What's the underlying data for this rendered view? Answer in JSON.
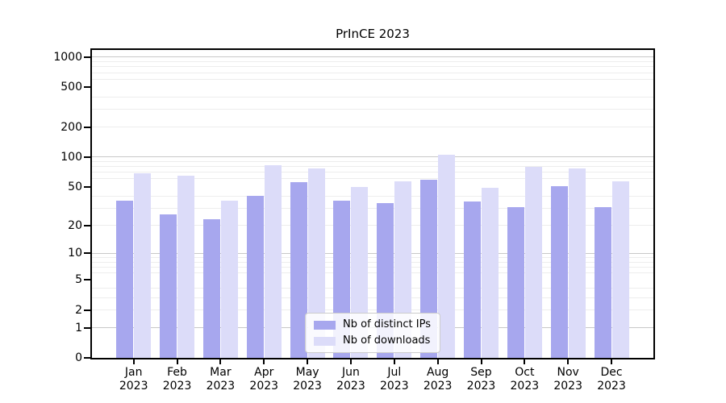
{
  "figure": {
    "title": "PrInCE 2023"
  },
  "chart_data": {
    "type": "bar",
    "title": "PrInCE 2023",
    "xlabel": "",
    "ylabel": "",
    "categories": [
      "Jan 2023",
      "Feb 2023",
      "Mar 2023",
      "Apr 2023",
      "May 2023",
      "Jun 2023",
      "Jul 2023",
      "Aug 2023",
      "Sep 2023",
      "Oct 2023",
      "Nov 2023",
      "Dec 2023"
    ],
    "x_month_labels": [
      "Jan",
      "Feb",
      "Mar",
      "Apr",
      "May",
      "Jun",
      "Jul",
      "Aug",
      "Sep",
      "Oct",
      "Nov",
      "Dec"
    ],
    "x_year_label": "2023",
    "series": [
      {
        "name": "Nb of distinct IPs",
        "color": "#a7a7ee",
        "values": [
          36,
          26,
          23,
          40,
          56,
          36,
          34,
          59,
          35,
          31,
          51,
          31
        ]
      },
      {
        "name": "Nb of downloads",
        "color": "#dcdcf9",
        "values": [
          68,
          65,
          36,
          82,
          76,
          50,
          57,
          105,
          49,
          79,
          77,
          57
        ]
      }
    ],
    "yaxis": {
      "scale": "log1p",
      "ylim": [
        0,
        1221
      ],
      "tick_values": [
        0,
        1,
        2,
        5,
        10,
        20,
        50,
        100,
        200,
        500,
        1000
      ],
      "major_grid_values": [
        1,
        10,
        100,
        1000
      ],
      "minor_grid_values": [
        2,
        3,
        4,
        6,
        7,
        8,
        9,
        20,
        30,
        40,
        60,
        70,
        80,
        90,
        200,
        300,
        400,
        600,
        700,
        800,
        900
      ]
    },
    "legend": {
      "position": "lower center",
      "entries": [
        "Nb of distinct IPs",
        "Nb of downloads"
      ]
    },
    "grid": true,
    "colors": {
      "major_grid": "#c8c8c8",
      "minor_grid": "#ededed",
      "axis": "#000000",
      "background": "#ffffff",
      "text": "#000000"
    }
  }
}
